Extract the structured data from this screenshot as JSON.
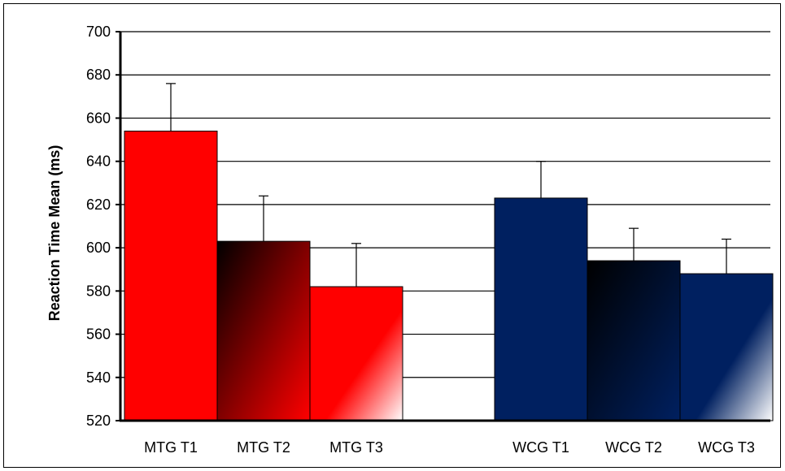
{
  "chart_data": {
    "type": "bar",
    "title": "",
    "xlabel": "",
    "ylabel": "Reaction Time Mean (ms)",
    "ylim": [
      520,
      700
    ],
    "yticks": [
      520,
      540,
      560,
      580,
      600,
      620,
      640,
      660,
      680,
      700
    ],
    "grid": true,
    "legend": "none",
    "groups": [
      "MTG",
      "WCG"
    ],
    "categories": [
      "MTG T1",
      "MTG T2",
      "MTG T3",
      "WCG T1",
      "WCG T2",
      "WCG T3"
    ],
    "values": [
      654,
      603,
      582,
      623,
      594,
      588
    ],
    "error_plus": [
      22,
      21,
      20,
      17,
      15,
      16
    ],
    "fills": [
      "solid-red",
      "gradient-black-red",
      "gradient-red-white",
      "solid-navy",
      "gradient-black-navy",
      "gradient-navy-white"
    ],
    "colors": {
      "red": "#ff0000",
      "navy": "#002060",
      "black": "#000000",
      "white": "#ffffff"
    }
  }
}
